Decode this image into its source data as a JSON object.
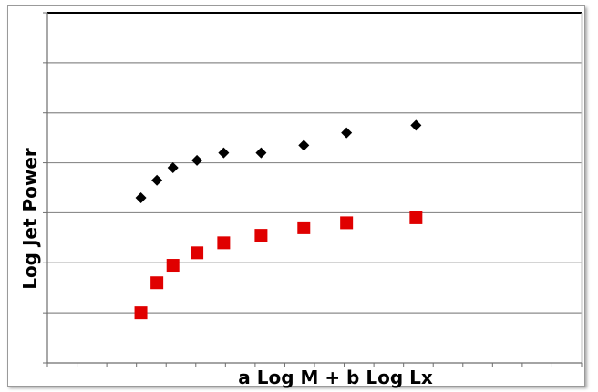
{
  "chart_data": {
    "type": "scatter",
    "title": "",
    "xlabel": "a Log M + b Log Lx",
    "ylabel": "Log Jet Power",
    "xlim": [
      0,
      20
    ],
    "ylim": [
      0,
      7
    ],
    "grid": true,
    "x_ticks": 18,
    "legend": "none",
    "series": [
      {
        "color": "#000000",
        "marker": "diamond",
        "points": [
          {
            "x": 3.5,
            "y": 3.3
          },
          {
            "x": 4.1,
            "y": 3.65
          },
          {
            "x": 4.7,
            "y": 3.9
          },
          {
            "x": 5.6,
            "y": 4.05
          },
          {
            "x": 6.6,
            "y": 4.2
          },
          {
            "x": 8.0,
            "y": 4.2
          },
          {
            "x": 9.6,
            "y": 4.35
          },
          {
            "x": 11.2,
            "y": 4.6
          },
          {
            "x": 13.8,
            "y": 4.75
          }
        ]
      },
      {
        "color": "#e00000",
        "marker": "square",
        "points": [
          {
            "x": 3.5,
            "y": 1.0
          },
          {
            "x": 4.1,
            "y": 1.6
          },
          {
            "x": 4.7,
            "y": 1.95
          },
          {
            "x": 5.6,
            "y": 2.2
          },
          {
            "x": 6.6,
            "y": 2.4
          },
          {
            "x": 8.0,
            "y": 2.55
          },
          {
            "x": 9.6,
            "y": 2.7
          },
          {
            "x": 11.2,
            "y": 2.8
          },
          {
            "x": 13.8,
            "y": 2.9
          }
        ]
      }
    ]
  }
}
